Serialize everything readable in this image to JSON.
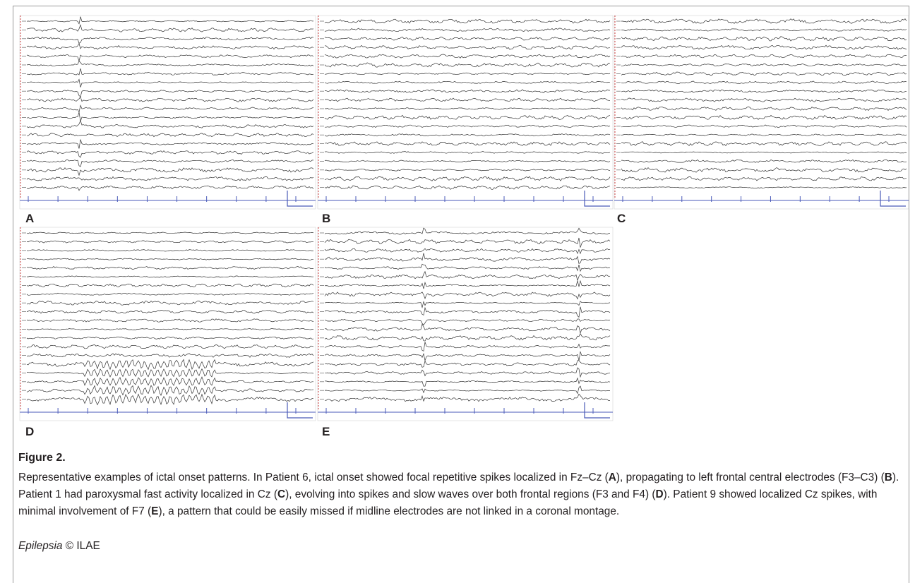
{
  "figure": {
    "panels": [
      {
        "label": "A"
      },
      {
        "label": "B"
      },
      {
        "label": "C"
      },
      {
        "label": "D"
      },
      {
        "label": "E"
      }
    ],
    "title": "Figure 2.",
    "caption": [
      "Representative examples of ictal onset patterns. In Patient 6, ictal onset showed focal repetitive spikes localized in Fz–Cz (",
      "A",
      "), propagating to left frontal central electrodes (F3–C3) (",
      "B",
      "). Patient 1 had paroxysmal fast activity localized in Cz (",
      "C",
      "), evolving into spikes and slow waves over both frontal regions (F3 and F4) (",
      "D",
      "). Patient 9 showed localized Cz spikes, with minimal involvement of F7 (",
      "E",
      "), a pattern that could be easily missed if midline electrodes are not linked in a coronal montage."
    ],
    "footer": {
      "journal": "Epilepsia",
      "publisher": "© ILAE"
    }
  }
}
